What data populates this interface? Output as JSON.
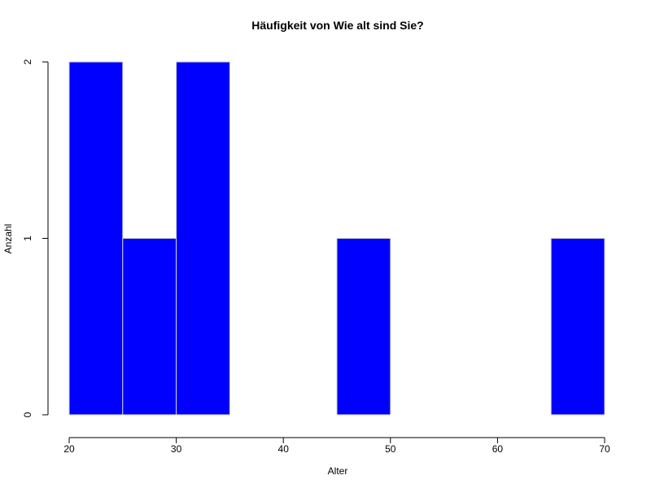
{
  "chart_data": {
    "type": "bar",
    "subtype": "histogram",
    "title": "Häufigkeit von Wie alt sind Sie?",
    "xlabel": "Alter",
    "ylabel": "Anzahl",
    "bins": [
      {
        "from": 20,
        "to": 25,
        "count": 2
      },
      {
        "from": 25,
        "to": 30,
        "count": 1
      },
      {
        "from": 30,
        "to": 35,
        "count": 2
      },
      {
        "from": 35,
        "to": 40,
        "count": 0
      },
      {
        "from": 40,
        "to": 45,
        "count": 0
      },
      {
        "from": 45,
        "to": 50,
        "count": 1
      },
      {
        "from": 50,
        "to": 55,
        "count": 0
      },
      {
        "from": 55,
        "to": 60,
        "count": 0
      },
      {
        "from": 60,
        "to": 65,
        "count": 0
      },
      {
        "from": 65,
        "to": 70,
        "count": 1
      }
    ],
    "xlim": [
      20,
      70
    ],
    "ylim": [
      0,
      2
    ],
    "xticks": [
      20,
      30,
      40,
      50,
      60,
      70
    ],
    "yticks": [
      0,
      1,
      2
    ],
    "bar_color": "#0000ff",
    "bar_border_color": "#d0d0d0",
    "grid": false
  }
}
